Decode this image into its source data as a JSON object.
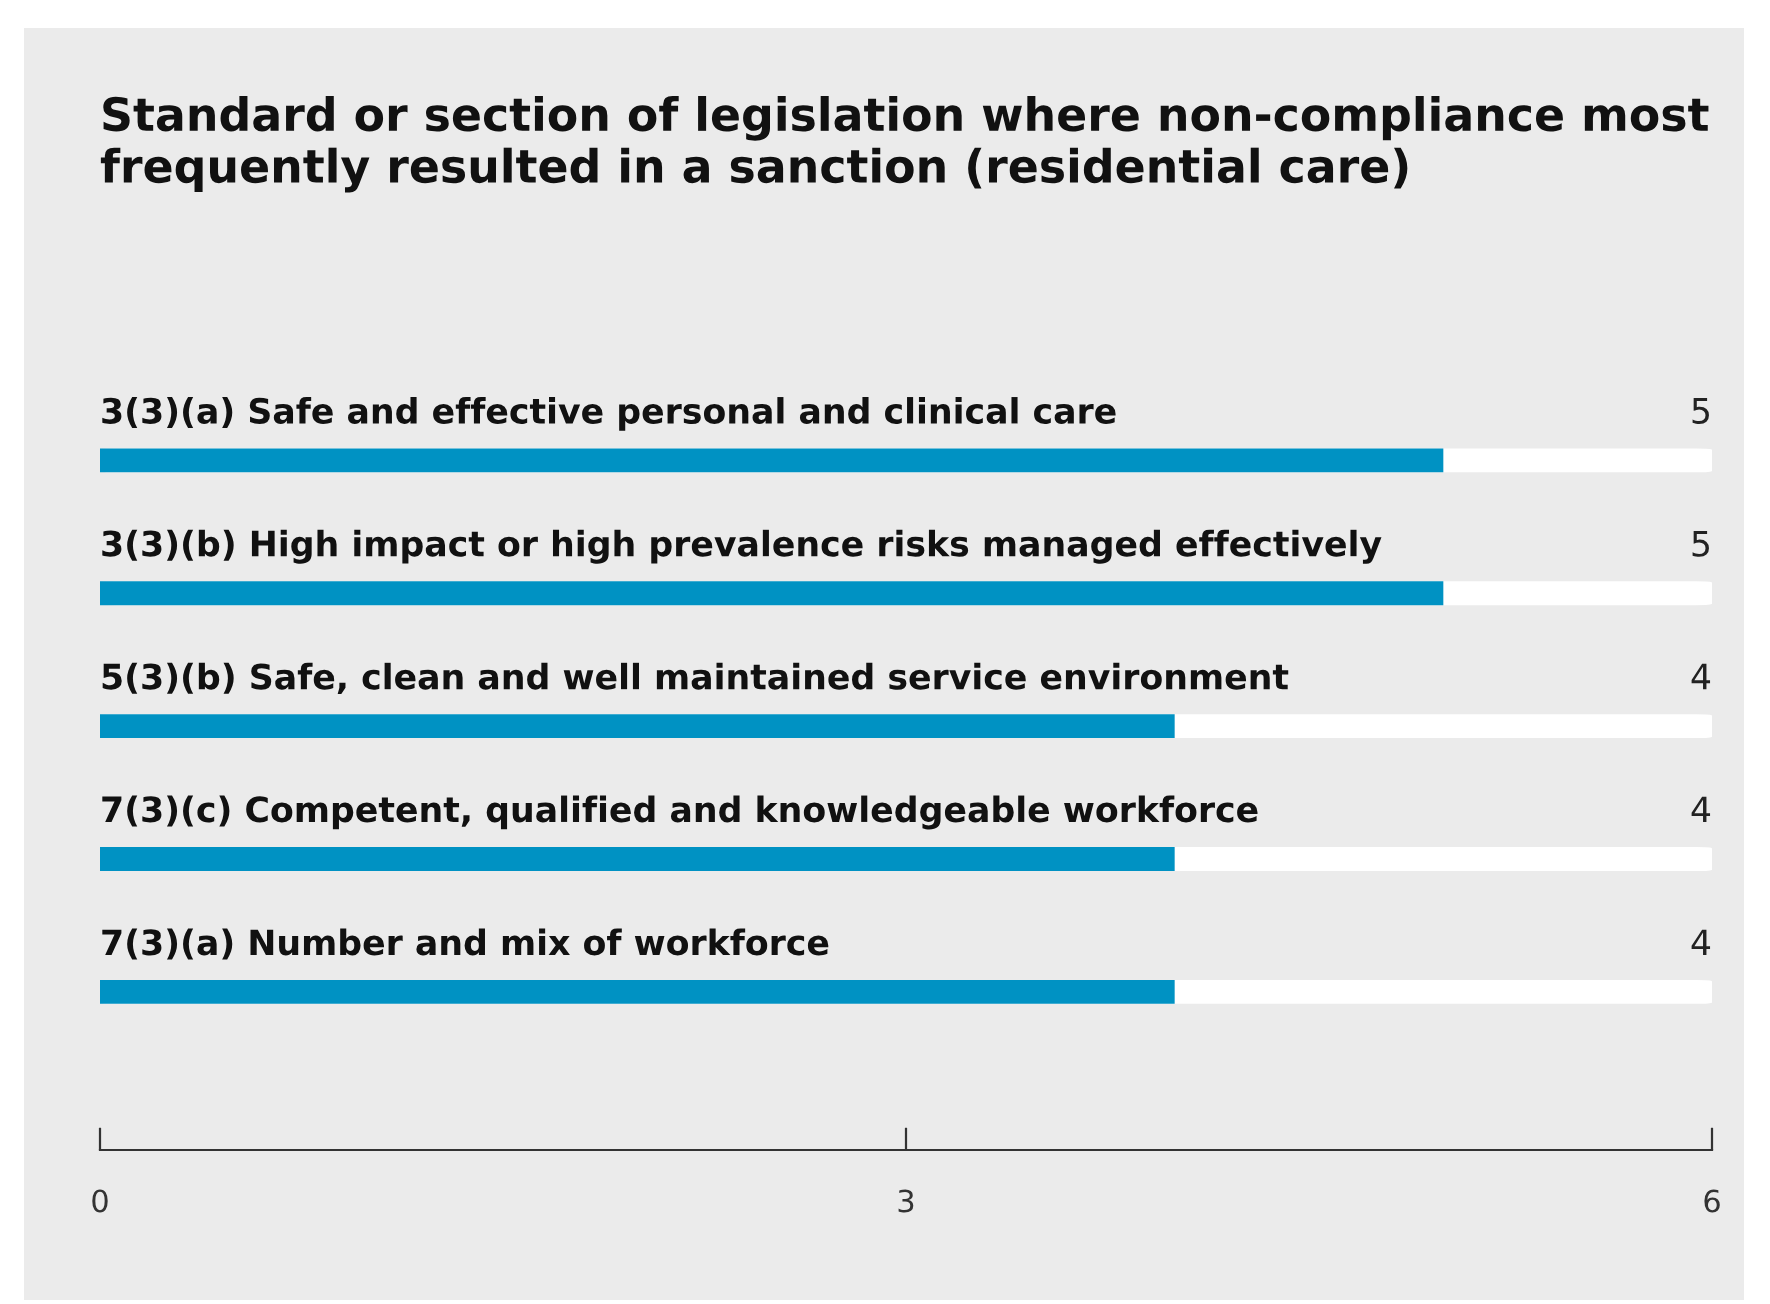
{
  "chart_data": {
    "type": "bar",
    "orientation": "horizontal",
    "title": "Standard or section of legislation where non-compliance most frequently resulted in a sanction (residential care)",
    "categories": [
      "3(3)(a) Safe and effective personal and clinical care",
      "3(3)(b) High impact or high prevalence risks managed effectively",
      "5(3)(b) Safe, clean and well maintained service environment",
      "7(3)(c) Competent, qualified and knowledgeable workforce",
      "7(3)(a) Number and mix of workforce"
    ],
    "values": [
      5,
      5,
      4,
      4,
      4
    ],
    "color": "#0092c3",
    "xlim": [
      0,
      6
    ],
    "xticks": [
      0,
      3,
      6
    ],
    "data_labels": true,
    "grid": false,
    "legend": false
  }
}
